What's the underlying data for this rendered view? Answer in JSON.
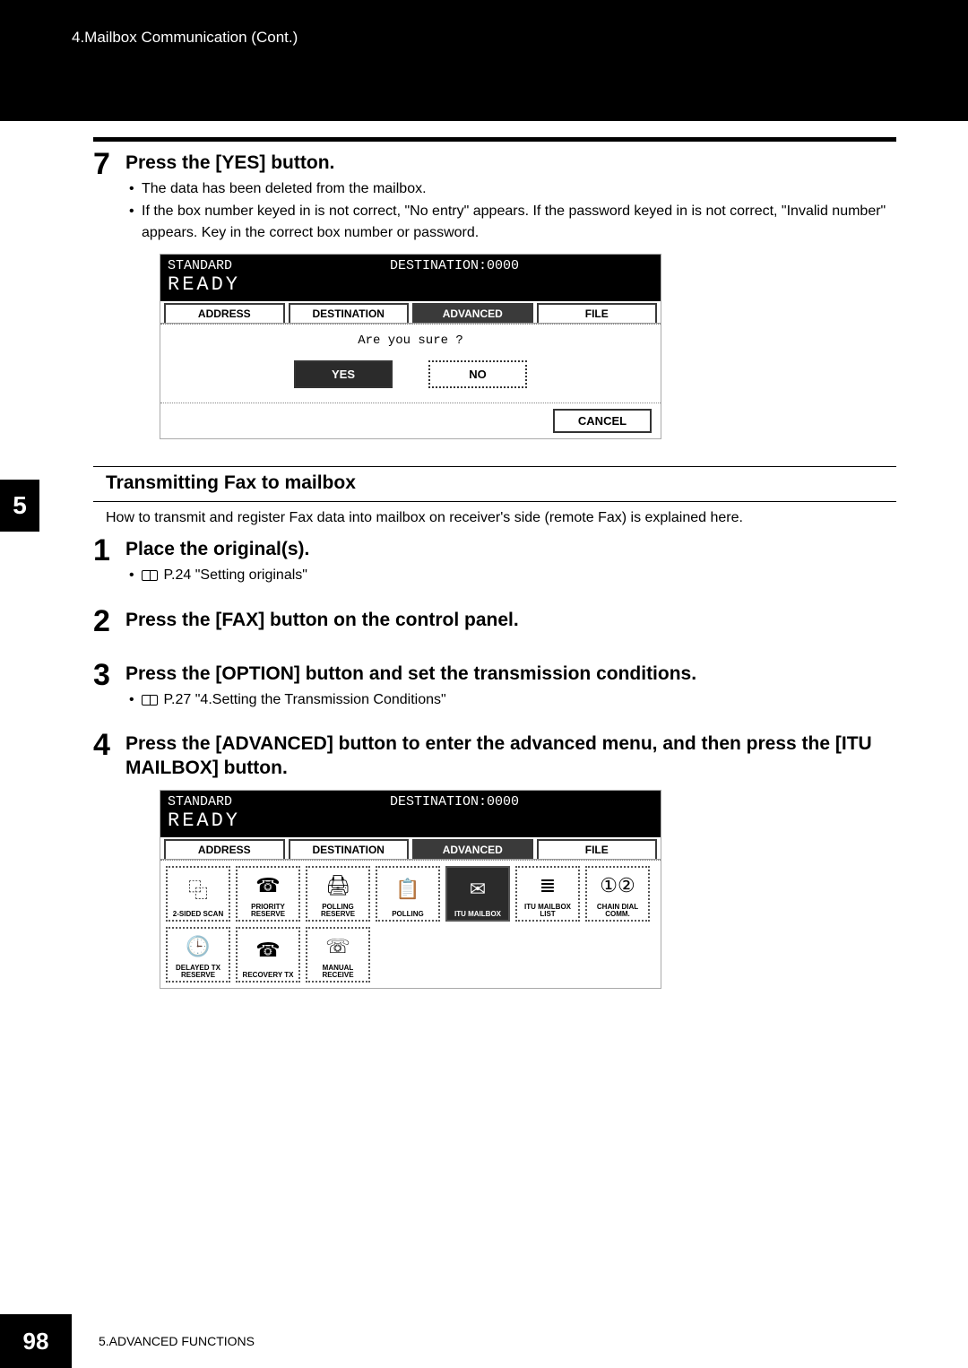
{
  "header": {
    "breadcrumb": "4.Mailbox Communication (Cont.)"
  },
  "chapter_tab": "5",
  "step7": {
    "num": "7",
    "title": "Press the [YES] button.",
    "bullets": [
      "The data has been deleted from the mailbox.",
      "If the box number keyed in is not correct, \"No entry\" appears. If the password keyed in is not correct, \"Invalid number\" appears. Key in the correct box number or password."
    ]
  },
  "ss1": {
    "standard": "STANDARD",
    "destination": "DESTINATION:0000",
    "ready": "READY",
    "tabs": [
      "ADDRESS",
      "DESTINATION",
      "ADVANCED",
      "FILE"
    ],
    "active_tab": 2,
    "prompt": "Are you sure ?",
    "yes": "YES",
    "no": "NO",
    "cancel": "CANCEL"
  },
  "subheading": "Transmitting Fax to mailbox",
  "intro": "How to transmit and register Fax data into mailbox on receiver's side (remote Fax) is explained here.",
  "step1": {
    "num": "1",
    "title": "Place the original(s).",
    "bullet": " P.24 \"Setting originals\""
  },
  "step2": {
    "num": "2",
    "title": "Press the [FAX] button on the control panel."
  },
  "step3": {
    "num": "3",
    "title": "Press the [OPTION] button and set the transmission conditions.",
    "bullet": " P.27 \"4.Setting the Transmission Conditions\""
  },
  "step4": {
    "num": "4",
    "title": "Press the [ADVANCED] button to enter the advanced menu, and then press the [ITU MAILBOX] button."
  },
  "ss2": {
    "standard": "STANDARD",
    "destination": "DESTINATION:0000",
    "ready": "READY",
    "tabs": [
      "ADDRESS",
      "DESTINATION",
      "ADVANCED",
      "FILE"
    ],
    "active_tab": 2,
    "icons": [
      {
        "label": "2-SIDED SCAN",
        "glyph": "⿻"
      },
      {
        "label": "PRIORITY RESERVE",
        "glyph": "☎"
      },
      {
        "label": "POLLING RESERVE",
        "glyph": "🖨"
      },
      {
        "label": "POLLING",
        "glyph": "📋"
      },
      {
        "label": "ITU MAILBOX",
        "glyph": "✉",
        "active": true
      },
      {
        "label": "ITU MAILBOX LIST",
        "glyph": "≣"
      },
      {
        "label": "CHAIN DIAL COMM.",
        "glyph": "①②"
      },
      {
        "label": "DELAYED TX RESERVE",
        "glyph": "🕒"
      },
      {
        "label": "RECOVERY TX",
        "glyph": "☎"
      },
      {
        "label": "MANUAL RECEIVE",
        "glyph": "☏"
      }
    ]
  },
  "footer": {
    "page": "98",
    "text": "5.ADVANCED FUNCTIONS"
  },
  "colors": {
    "black": "#000000",
    "white": "#ffffff",
    "dark_gray": "#2b2b2b",
    "border_gray": "#3a3a3a",
    "light_border": "#aaaaaa"
  }
}
